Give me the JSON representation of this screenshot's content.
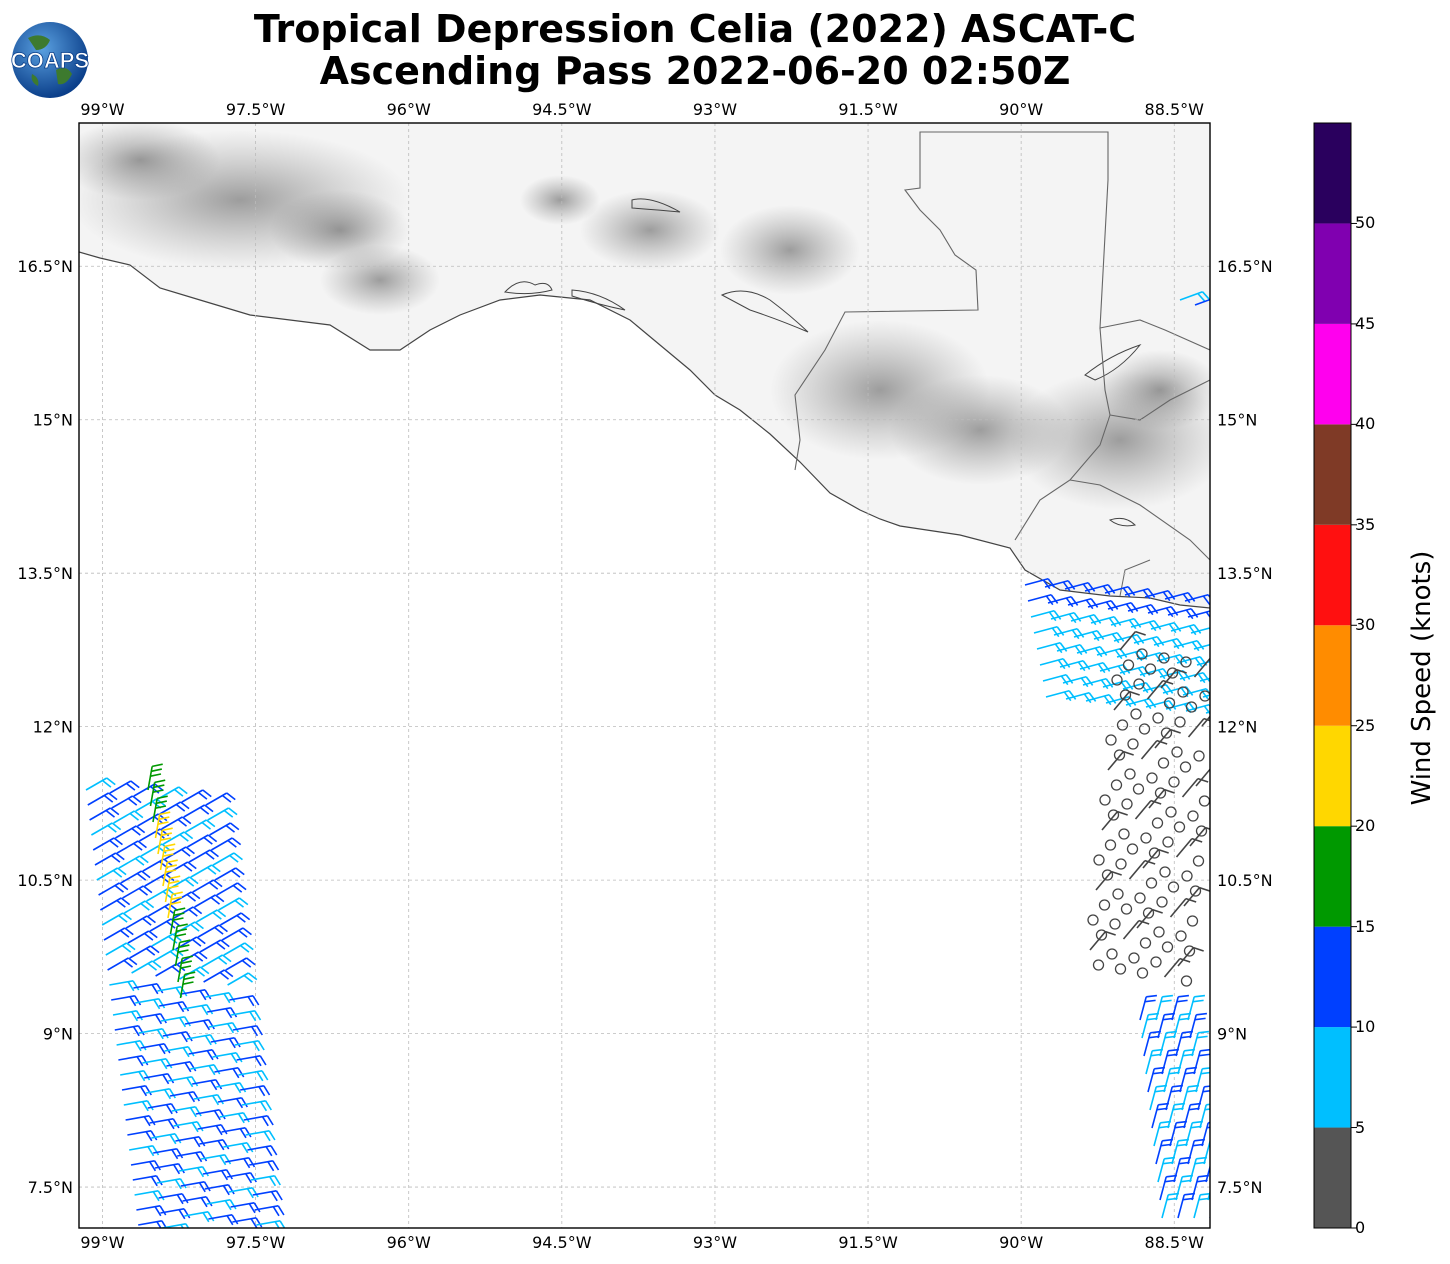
{
  "header": {
    "title_line1": "Tropical Depression Celia (2022) ASCAT-C",
    "title_line2": "Ascending Pass 2022-06-20 02:50Z",
    "logo_text": "COAPS"
  },
  "map": {
    "extent": {
      "lon_min": -99.23,
      "lon_max": -88.15,
      "lat_min": 7.1,
      "lat_max": 17.9
    },
    "lon_ticks": [
      {
        "lon": -99.0,
        "label": "99°W"
      },
      {
        "lon": -97.5,
        "label": "97.5°W"
      },
      {
        "lon": -96.0,
        "label": "96°W"
      },
      {
        "lon": -94.5,
        "label": "94.5°W"
      },
      {
        "lon": -93.0,
        "label": "93°W"
      },
      {
        "lon": -91.5,
        "label": "91.5°W"
      },
      {
        "lon": -90.0,
        "label": "90°W"
      },
      {
        "lon": -88.5,
        "label": "88.5°W"
      }
    ],
    "lat_ticks": [
      {
        "lat": 16.5,
        "label": "16.5°N"
      },
      {
        "lat": 15.0,
        "label": "15°N"
      },
      {
        "lat": 13.5,
        "label": "13.5°N"
      },
      {
        "lat": 12.0,
        "label": "12°N"
      },
      {
        "lat": 10.5,
        "label": "10.5°N"
      },
      {
        "lat": 9.0,
        "label": "9°N"
      },
      {
        "lat": 7.5,
        "label": "7.5°N"
      }
    ],
    "coast_color": "#444444",
    "grid_color": "#bbbbbb"
  },
  "colorbar": {
    "title": "Wind Speed (knots)",
    "bins": [
      {
        "from": 0,
        "to": 5,
        "color": "#555555"
      },
      {
        "from": 5,
        "to": 10,
        "color": "#00bfff"
      },
      {
        "from": 10,
        "to": 15,
        "color": "#0040ff"
      },
      {
        "from": 15,
        "to": 20,
        "color": "#009900"
      },
      {
        "from": 20,
        "to": 25,
        "color": "#ffd700"
      },
      {
        "from": 25,
        "to": 30,
        "color": "#ff8c00"
      },
      {
        "from": 30,
        "to": 35,
        "color": "#ff1010"
      },
      {
        "from": 35,
        "to": 40,
        "color": "#7f3a26"
      },
      {
        "from": 40,
        "to": 45,
        "color": "#ff00ee"
      },
      {
        "from": 45,
        "to": 50,
        "color": "#8000b0"
      },
      {
        "from": 50,
        "to": 55,
        "color": "#2a005e"
      }
    ],
    "tick_labels": [
      "0",
      "5",
      "10",
      "15",
      "20",
      "25",
      "30",
      "35",
      "40",
      "45",
      "50"
    ]
  }
}
